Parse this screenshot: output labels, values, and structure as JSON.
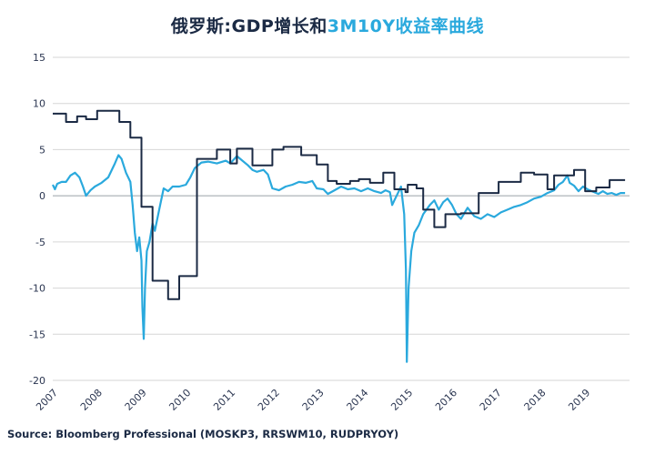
{
  "title": {
    "part1": "俄罗斯:GDP增长和",
    "part2": "3M10Y收益率曲线"
  },
  "source": "Source: Bloomberg Professional  (MOSKP3, RRSWM10, RUDPRYOY)",
  "colors": {
    "gdp": "#1b2a44",
    "curve": "#2aa9dd",
    "grid": "#d6d6d6"
  },
  "chart_data": {
    "type": "line",
    "title": "俄罗斯:GDP增长和3M10Y收益率曲线",
    "xlabel": "",
    "ylabel": "",
    "ylim": [
      -20,
      15
    ],
    "xlim": [
      2007,
      2020
    ],
    "yticks": [
      15,
      10,
      5,
      0,
      -5,
      -10,
      -15,
      -20
    ],
    "xticks": [
      "2007",
      "2008",
      "2009",
      "2010",
      "2011",
      "2012",
      "2013",
      "2014",
      "2015",
      "2016",
      "2017",
      "2018",
      "2019"
    ],
    "grid": true,
    "series": [
      {
        "name": "GDP增长",
        "color": "#1b2a44",
        "step": true,
        "points": [
          [
            2007.0,
            8.9
          ],
          [
            2007.3,
            8.0
          ],
          [
            2007.55,
            8.6
          ],
          [
            2007.75,
            8.3
          ],
          [
            2008.0,
            9.2
          ],
          [
            2008.5,
            8.0
          ],
          [
            2008.75,
            6.3
          ],
          [
            2009.0,
            -1.2
          ],
          [
            2009.25,
            -9.2
          ],
          [
            2009.6,
            -11.2
          ],
          [
            2009.85,
            -8.7
          ],
          [
            2010.2,
            -8.7
          ],
          [
            2010.25,
            4.0
          ],
          [
            2010.7,
            5.0
          ],
          [
            2011.0,
            3.5
          ],
          [
            2011.15,
            5.1
          ],
          [
            2011.5,
            3.3
          ],
          [
            2011.95,
            5.0
          ],
          [
            2012.2,
            5.3
          ],
          [
            2012.6,
            4.4
          ],
          [
            2012.95,
            3.4
          ],
          [
            2013.2,
            1.6
          ],
          [
            2013.4,
            1.3
          ],
          [
            2013.7,
            1.6
          ],
          [
            2013.9,
            1.8
          ],
          [
            2014.15,
            1.4
          ],
          [
            2014.45,
            2.5
          ],
          [
            2014.7,
            0.7
          ],
          [
            2014.95,
            0.4
          ],
          [
            2015.0,
            1.2
          ],
          [
            2015.2,
            0.8
          ],
          [
            2015.35,
            -1.5
          ],
          [
            2015.6,
            -3.4
          ],
          [
            2015.85,
            -2.0
          ],
          [
            2016.2,
            -1.9
          ],
          [
            2016.6,
            0.3
          ],
          [
            2017.05,
            1.5
          ],
          [
            2017.55,
            2.5
          ],
          [
            2017.85,
            2.3
          ],
          [
            2018.15,
            0.7
          ],
          [
            2018.3,
            2.2
          ],
          [
            2018.75,
            2.8
          ],
          [
            2019.0,
            0.5
          ],
          [
            2019.25,
            0.9
          ],
          [
            2019.55,
            1.7
          ],
          [
            2019.9,
            1.7
          ]
        ]
      },
      {
        "name": "3M10Y收益率曲线",
        "color": "#2aa9dd",
        "step": false,
        "points": [
          [
            2007.0,
            1.2
          ],
          [
            2007.05,
            0.7
          ],
          [
            2007.1,
            1.3
          ],
          [
            2007.2,
            1.5
          ],
          [
            2007.3,
            1.5
          ],
          [
            2007.4,
            2.2
          ],
          [
            2007.5,
            2.5
          ],
          [
            2007.6,
            2.0
          ],
          [
            2007.68,
            1.0
          ],
          [
            2007.75,
            0.0
          ],
          [
            2007.85,
            0.6
          ],
          [
            2007.95,
            1.0
          ],
          [
            2008.1,
            1.4
          ],
          [
            2008.25,
            2.0
          ],
          [
            2008.4,
            3.5
          ],
          [
            2008.48,
            4.4
          ],
          [
            2008.55,
            4.0
          ],
          [
            2008.65,
            2.5
          ],
          [
            2008.75,
            1.5
          ],
          [
            2008.8,
            -1.0
          ],
          [
            2008.85,
            -4.0
          ],
          [
            2008.9,
            -6.0
          ],
          [
            2008.95,
            -4.5
          ],
          [
            2009.0,
            -7.0
          ],
          [
            2009.02,
            -12.0
          ],
          [
            2009.05,
            -15.5
          ],
          [
            2009.08,
            -10.0
          ],
          [
            2009.12,
            -6.0
          ],
          [
            2009.18,
            -5.0
          ],
          [
            2009.25,
            -3.0
          ],
          [
            2009.3,
            -3.8
          ],
          [
            2009.4,
            -1.5
          ],
          [
            2009.5,
            0.8
          ],
          [
            2009.6,
            0.5
          ],
          [
            2009.7,
            1.0
          ],
          [
            2009.85,
            1.0
          ],
          [
            2010.0,
            1.2
          ],
          [
            2010.1,
            2.0
          ],
          [
            2010.2,
            3.0
          ],
          [
            2010.35,
            3.6
          ],
          [
            2010.5,
            3.7
          ],
          [
            2010.7,
            3.5
          ],
          [
            2010.9,
            3.8
          ],
          [
            2011.0,
            3.5
          ],
          [
            2011.15,
            4.3
          ],
          [
            2011.25,
            3.9
          ],
          [
            2011.4,
            3.3
          ],
          [
            2011.5,
            2.8
          ],
          [
            2011.6,
            2.6
          ],
          [
            2011.75,
            2.8
          ],
          [
            2011.85,
            2.3
          ],
          [
            2011.95,
            0.8
          ],
          [
            2012.1,
            0.6
          ],
          [
            2012.25,
            1.0
          ],
          [
            2012.4,
            1.2
          ],
          [
            2012.55,
            1.5
          ],
          [
            2012.7,
            1.4
          ],
          [
            2012.85,
            1.6
          ],
          [
            2012.95,
            0.8
          ],
          [
            2013.1,
            0.7
          ],
          [
            2013.2,
            0.2
          ],
          [
            2013.35,
            0.6
          ],
          [
            2013.5,
            1.0
          ],
          [
            2013.65,
            0.7
          ],
          [
            2013.8,
            0.8
          ],
          [
            2013.95,
            0.5
          ],
          [
            2014.1,
            0.8
          ],
          [
            2014.25,
            0.5
          ],
          [
            2014.4,
            0.3
          ],
          [
            2014.5,
            0.6
          ],
          [
            2014.6,
            0.4
          ],
          [
            2014.65,
            -1.0
          ],
          [
            2014.7,
            -0.5
          ],
          [
            2014.8,
            0.5
          ],
          [
            2014.85,
            1.0
          ],
          [
            2014.92,
            -2.0
          ],
          [
            2014.96,
            -8.0
          ],
          [
            2014.98,
            -18.0
          ],
          [
            2015.02,
            -10.0
          ],
          [
            2015.08,
            -6.0
          ],
          [
            2015.15,
            -4.0
          ],
          [
            2015.25,
            -3.2
          ],
          [
            2015.35,
            -2.0
          ],
          [
            2015.5,
            -1.0
          ],
          [
            2015.6,
            -0.5
          ],
          [
            2015.7,
            -1.5
          ],
          [
            2015.8,
            -0.7
          ],
          [
            2015.9,
            -0.3
          ],
          [
            2016.0,
            -1.0
          ],
          [
            2016.1,
            -2.0
          ],
          [
            2016.2,
            -2.5
          ],
          [
            2016.35,
            -1.3
          ],
          [
            2016.5,
            -2.2
          ],
          [
            2016.65,
            -2.5
          ],
          [
            2016.8,
            -2.0
          ],
          [
            2016.95,
            -2.3
          ],
          [
            2017.1,
            -1.8
          ],
          [
            2017.25,
            -1.5
          ],
          [
            2017.4,
            -1.2
          ],
          [
            2017.55,
            -1.0
          ],
          [
            2017.7,
            -0.7
          ],
          [
            2017.85,
            -0.3
          ],
          [
            2018.0,
            -0.1
          ],
          [
            2018.15,
            0.3
          ],
          [
            2018.3,
            0.6
          ],
          [
            2018.4,
            1.2
          ],
          [
            2018.5,
            1.5
          ],
          [
            2018.6,
            2.2
          ],
          [
            2018.65,
            1.4
          ],
          [
            2018.75,
            1.1
          ],
          [
            2018.85,
            0.5
          ],
          [
            2018.95,
            1.0
          ],
          [
            2019.05,
            0.7
          ],
          [
            2019.2,
            0.4
          ],
          [
            2019.3,
            0.2
          ],
          [
            2019.4,
            0.5
          ],
          [
            2019.5,
            0.2
          ],
          [
            2019.6,
            0.3
          ],
          [
            2019.7,
            0.1
          ],
          [
            2019.8,
            0.3
          ],
          [
            2019.9,
            0.3
          ]
        ]
      }
    ]
  }
}
